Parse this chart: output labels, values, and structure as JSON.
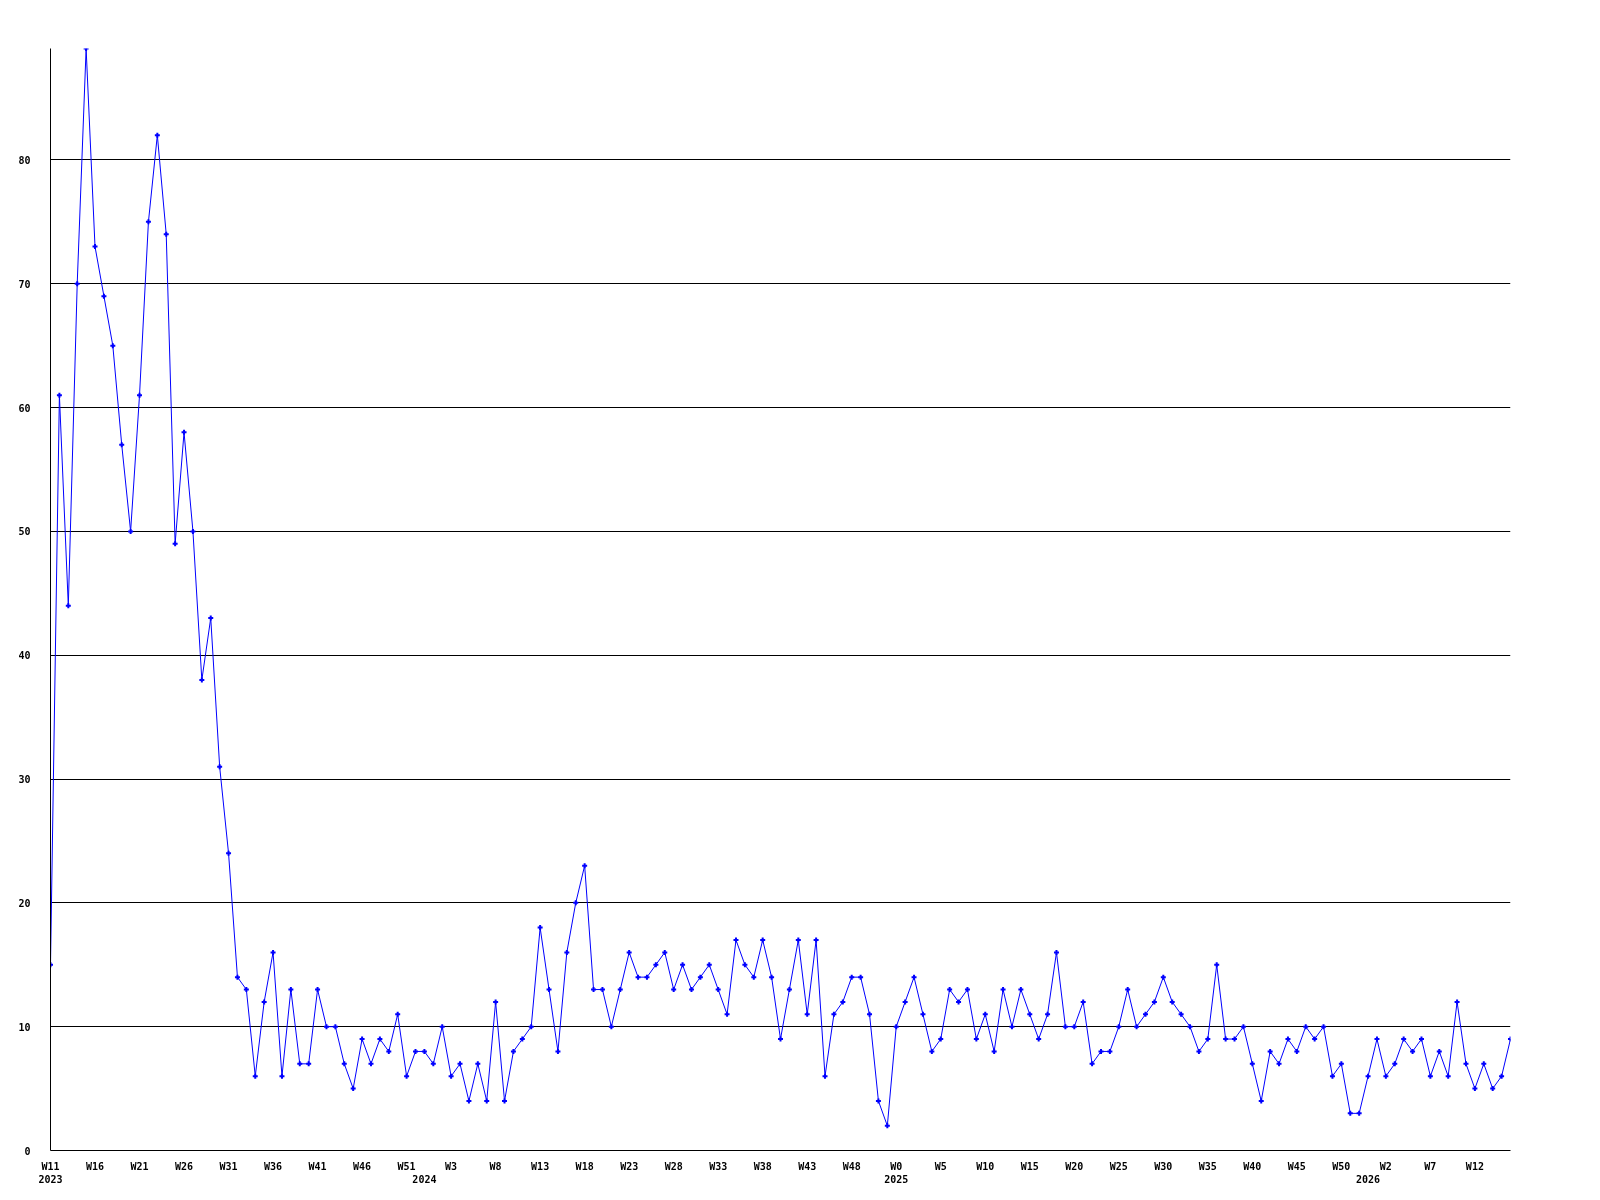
{
  "chart_data": {
    "type": "line",
    "categories": [
      "W11\n2023",
      null,
      null,
      null,
      null,
      "W16",
      null,
      null,
      null,
      null,
      "W21",
      null,
      null,
      null,
      null,
      "W26",
      null,
      null,
      null,
      null,
      "W31",
      null,
      null,
      null,
      null,
      "W36",
      null,
      null,
      null,
      null,
      "W41",
      null,
      null,
      null,
      null,
      "W46",
      null,
      null,
      null,
      null,
      "W51",
      null,
      "\n2024",
      null,
      null,
      "W3",
      null,
      null,
      null,
      null,
      "W8",
      null,
      null,
      null,
      null,
      "W13",
      null,
      null,
      null,
      null,
      "W18",
      null,
      null,
      null,
      null,
      "W23",
      null,
      null,
      null,
      null,
      "W28",
      null,
      null,
      null,
      null,
      "W33",
      null,
      null,
      null,
      null,
      "W38",
      null,
      null,
      null,
      null,
      "W43",
      null,
      null,
      null,
      null,
      "W48",
      null,
      null,
      null,
      null,
      "W0\n2025",
      null,
      null,
      null,
      null,
      "W5",
      null,
      null,
      null,
      null,
      "W10",
      null,
      null,
      null,
      null,
      "W15",
      null,
      null,
      null,
      null,
      "W20",
      null,
      null,
      null,
      null,
      "W25",
      null,
      null,
      null,
      null,
      "W30",
      null,
      null,
      null,
      null,
      "W35",
      null,
      null,
      null,
      null,
      "W40",
      null,
      null,
      null,
      null,
      "W45",
      null,
      null,
      null,
      null,
      "W50",
      null,
      null,
      "\n2026",
      null,
      "W2",
      null,
      null,
      null,
      null,
      "W7",
      null,
      null,
      null,
      null,
      "W12",
      null,
      null,
      null,
      null
    ],
    "series": [
      {
        "color": "#0000ff",
        "values": [
          15,
          61,
          44,
          70,
          89,
          73,
          69,
          65,
          57,
          50,
          61,
          75,
          82,
          74,
          49,
          58,
          50,
          38,
          43,
          31,
          24,
          14,
          13,
          6,
          12,
          16,
          6,
          13,
          7,
          7,
          13,
          10,
          10,
          7,
          5,
          9,
          7,
          9,
          8,
          11,
          6,
          8,
          8,
          7,
          10,
          6,
          7,
          4,
          7,
          4,
          12,
          4,
          8,
          9,
          10,
          18,
          13,
          8,
          16,
          20,
          23,
          13,
          13,
          10,
          13,
          16,
          14,
          14,
          15,
          16,
          13,
          15,
          13,
          14,
          15,
          13,
          11,
          17,
          15,
          14,
          17,
          14,
          9,
          13,
          17,
          11,
          17,
          6,
          11,
          12,
          14,
          14,
          11,
          4,
          2,
          10,
          12,
          14,
          11,
          8,
          9,
          13,
          12,
          13,
          9,
          11,
          8,
          13,
          10,
          13,
          11,
          9,
          11,
          16,
          10,
          10,
          12,
          7,
          8,
          8,
          10,
          13,
          10,
          11,
          12,
          14,
          12,
          11,
          10,
          8,
          9,
          15,
          9,
          9,
          10,
          7,
          4,
          8,
          7,
          9,
          8,
          10,
          9,
          10,
          6,
          7,
          3,
          3,
          6,
          9,
          6,
          7,
          9,
          8,
          9,
          6,
          8,
          6,
          12,
          7,
          5,
          7,
          5,
          6,
          9
        ]
      }
    ],
    "ylim": [
      0,
      89
    ],
    "yticks": [
      0,
      10,
      20,
      30,
      40,
      50,
      60,
      70,
      80
    ],
    "grid": "y",
    "marker": "cross",
    "line_style": "solid"
  }
}
